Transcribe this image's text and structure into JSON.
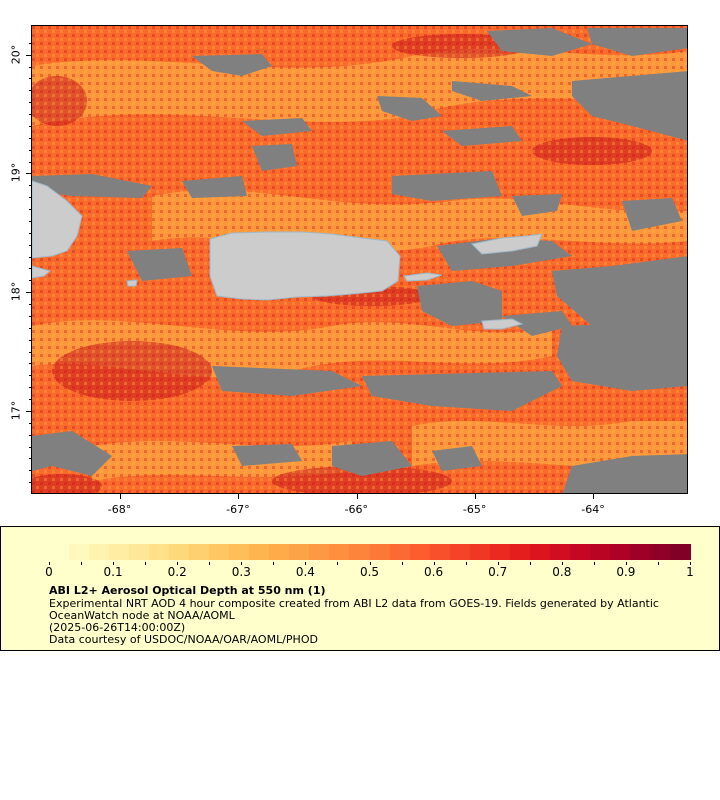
{
  "map": {
    "x_ticks": [
      {
        "label": "-68°",
        "lon": -68
      },
      {
        "label": "-67°",
        "lon": -67
      },
      {
        "label": "-66°",
        "lon": -66
      },
      {
        "label": "-65°",
        "lon": -65
      },
      {
        "label": "-64°",
        "lon": -64
      }
    ],
    "y_ticks": [
      {
        "label": "20°",
        "lat": 20
      },
      {
        "label": "19°",
        "lat": 19
      },
      {
        "label": "18°",
        "lat": 18
      },
      {
        "label": "17°",
        "lat": 17
      }
    ],
    "lon_range": [
      -68.75,
      -63.2
    ],
    "lat_range": [
      16.3,
      20.25
    ],
    "colors": {
      "land": "#cccccc",
      "no_data": "#808080",
      "aod_low": "#ffb347",
      "aod_mid": "#fa6a2a",
      "aod_high": "#c0101c"
    }
  },
  "legend": {
    "colorbar_ticks": [
      "0",
      "0.1",
      "0.2",
      "0.3",
      "0.4",
      "0.5",
      "0.6",
      "0.7",
      "0.8",
      "0.9",
      "1"
    ],
    "colorbar_range": [
      0,
      1
    ],
    "colormap": [
      "#ffffcc",
      "#fff0a8",
      "#fee087",
      "#fec965",
      "#feb24c",
      "#fd9a44",
      "#fd7f39",
      "#fc5b2e",
      "#f23b25",
      "#e31a1c",
      "#c70723",
      "#a80026",
      "#800026"
    ],
    "title": "ABI L2+ Aerosol Optical Depth at 550 nm (1)",
    "line1": "Experimental NRT AOD 4 hour composite created from ABI L2 data from GOES-19. Fields generated by Atlantic",
    "line2": "OceanWatch node at NOAA/AOML",
    "line3": "(2025-06-26T14:00:00Z)",
    "line4": "Data courtesy of USDOC/NOAA/OAR/AOML/PHOD"
  }
}
